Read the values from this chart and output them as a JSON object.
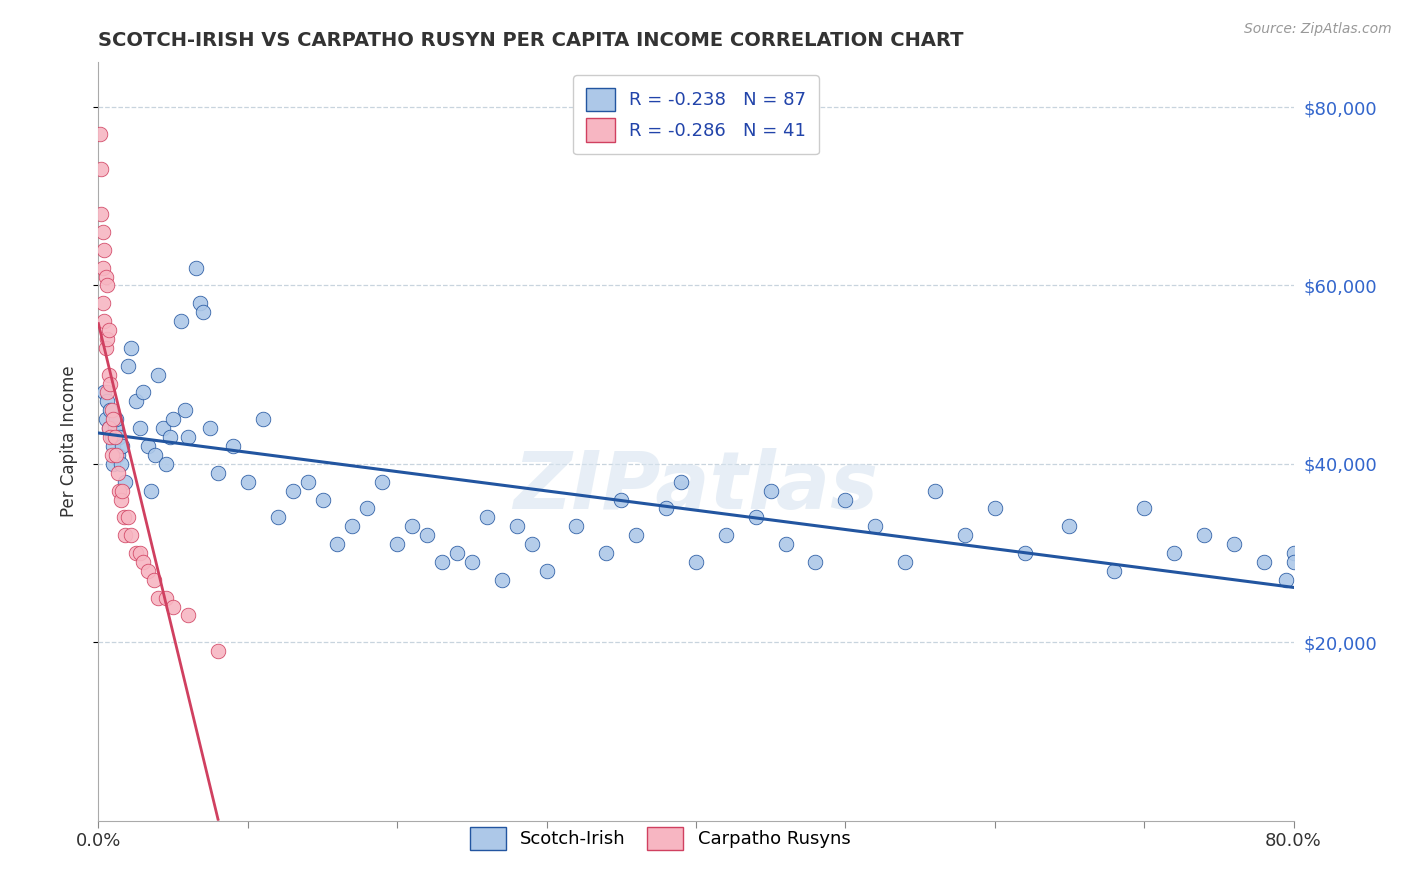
{
  "title": "SCOTCH-IRISH VS CARPATHO RUSYN PER CAPITA INCOME CORRELATION CHART",
  "source_text": "Source: ZipAtlas.com",
  "ylabel": "Per Capita Income",
  "xlim": [
    0.0,
    0.8
  ],
  "ylim": [
    0,
    85000
  ],
  "yticks": [
    20000,
    40000,
    60000,
    80000
  ],
  "ytick_labels": [
    "$20,000",
    "$40,000",
    "$60,000",
    "$80,000"
  ],
  "xticks": [
    0.0,
    0.1,
    0.2,
    0.3,
    0.4,
    0.5,
    0.6,
    0.7,
    0.8
  ],
  "legend_blue_label": "R = -0.238   N = 87",
  "legend_pink_label": "R = -0.286   N = 41",
  "blue_scatter_color": "#adc8e8",
  "pink_scatter_color": "#f7b6c2",
  "blue_line_color": "#2255a0",
  "pink_line_color": "#d04060",
  "background_color": "#ffffff",
  "watermark": "ZIPatlas",
  "scotch_irish_x": [
    0.004,
    0.005,
    0.006,
    0.007,
    0.008,
    0.009,
    0.01,
    0.01,
    0.011,
    0.012,
    0.013,
    0.014,
    0.015,
    0.016,
    0.018,
    0.02,
    0.022,
    0.025,
    0.028,
    0.03,
    0.033,
    0.035,
    0.038,
    0.04,
    0.043,
    0.045,
    0.048,
    0.05,
    0.055,
    0.058,
    0.06,
    0.065,
    0.068,
    0.07,
    0.075,
    0.08,
    0.09,
    0.1,
    0.11,
    0.12,
    0.13,
    0.14,
    0.15,
    0.16,
    0.17,
    0.18,
    0.19,
    0.2,
    0.21,
    0.22,
    0.23,
    0.24,
    0.25,
    0.26,
    0.27,
    0.28,
    0.29,
    0.3,
    0.32,
    0.34,
    0.35,
    0.36,
    0.38,
    0.39,
    0.4,
    0.42,
    0.44,
    0.45,
    0.46,
    0.48,
    0.5,
    0.52,
    0.54,
    0.56,
    0.58,
    0.6,
    0.62,
    0.65,
    0.68,
    0.7,
    0.72,
    0.74,
    0.76,
    0.78,
    0.795,
    0.8,
    0.8
  ],
  "scotch_irish_y": [
    48000,
    45000,
    47000,
    44000,
    46000,
    43000,
    42000,
    40000,
    44000,
    45000,
    41000,
    43000,
    40000,
    42000,
    38000,
    51000,
    53000,
    47000,
    44000,
    48000,
    42000,
    37000,
    41000,
    50000,
    44000,
    40000,
    43000,
    45000,
    56000,
    46000,
    43000,
    62000,
    58000,
    57000,
    44000,
    39000,
    42000,
    38000,
    45000,
    34000,
    37000,
    38000,
    36000,
    31000,
    33000,
    35000,
    38000,
    31000,
    33000,
    32000,
    29000,
    30000,
    29000,
    34000,
    27000,
    33000,
    31000,
    28000,
    33000,
    30000,
    36000,
    32000,
    35000,
    38000,
    29000,
    32000,
    34000,
    37000,
    31000,
    29000,
    36000,
    33000,
    29000,
    37000,
    32000,
    35000,
    30000,
    33000,
    28000,
    35000,
    30000,
    32000,
    31000,
    29000,
    27000,
    30000,
    29000
  ],
  "carpatho_rusyn_x": [
    0.001,
    0.002,
    0.002,
    0.003,
    0.003,
    0.003,
    0.004,
    0.004,
    0.005,
    0.005,
    0.006,
    0.006,
    0.006,
    0.007,
    0.007,
    0.007,
    0.008,
    0.008,
    0.009,
    0.009,
    0.01,
    0.011,
    0.012,
    0.013,
    0.014,
    0.015,
    0.016,
    0.017,
    0.018,
    0.02,
    0.022,
    0.025,
    0.028,
    0.03,
    0.033,
    0.037,
    0.04,
    0.045,
    0.05,
    0.06,
    0.08
  ],
  "carpatho_rusyn_y": [
    77000,
    73000,
    68000,
    66000,
    62000,
    58000,
    64000,
    56000,
    61000,
    53000,
    60000,
    54000,
    48000,
    55000,
    50000,
    44000,
    49000,
    43000,
    46000,
    41000,
    45000,
    43000,
    41000,
    39000,
    37000,
    36000,
    37000,
    34000,
    32000,
    34000,
    32000,
    30000,
    30000,
    29000,
    28000,
    27000,
    25000,
    25000,
    24000,
    23000,
    19000
  ]
}
